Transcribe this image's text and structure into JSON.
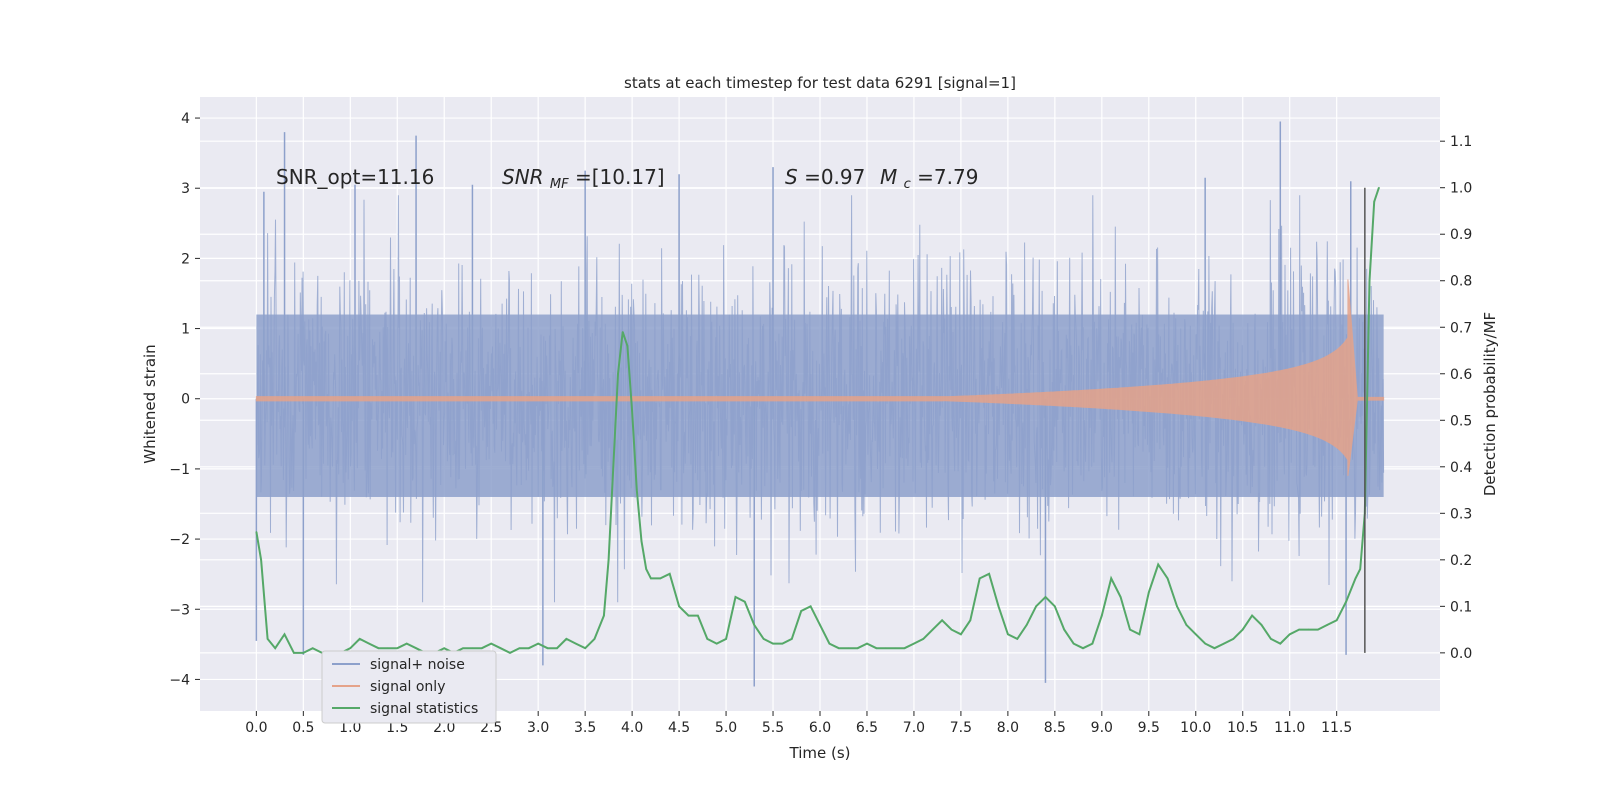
{
  "chart_data": {
    "type": "line",
    "title": "stats at each timestep for test data 6291 [signal=1]",
    "xlabel": "Time (s)",
    "ylabel": "Whitened strain",
    "ylabel_right": "Detection probability/MF",
    "xlim": [
      -0.6,
      12.6
    ],
    "ylim": [
      -4.45,
      4.3
    ],
    "ylim_right": [
      -0.125,
      1.195
    ],
    "x_ticks": [
      0.0,
      0.5,
      1.0,
      1.5,
      2.0,
      2.5,
      3.0,
      3.5,
      4.0,
      4.5,
      5.0,
      5.5,
      6.0,
      6.5,
      7.0,
      7.5,
      8.0,
      8.5,
      9.0,
      9.5,
      10.0,
      10.5,
      11.0,
      11.5
    ],
    "x_tick_labels": [
      "0.0",
      "0.5",
      "1.0",
      "1.5",
      "2.0",
      "2.5",
      "3.0",
      "3.5",
      "4.0",
      "4.5",
      "5.0",
      "5.5",
      "6.0",
      "6.5",
      "7.0",
      "7.5",
      "8.0",
      "8.5",
      "9.0",
      "9.5",
      "10.0",
      "10.5",
      "11.0",
      "11.5"
    ],
    "y_ticks": [
      -4,
      -3,
      -2,
      -1,
      0,
      1,
      2,
      3,
      4
    ],
    "y_tick_labels": [
      "−4",
      "−3",
      "−2",
      "−1",
      "0",
      "1",
      "2",
      "3",
      "4"
    ],
    "y_right_ticks": [
      0.0,
      0.1,
      0.2,
      0.3,
      0.4,
      0.5,
      0.6,
      0.7,
      0.8,
      0.9,
      1.0,
      1.1
    ],
    "y_right_tick_labels": [
      "0.0",
      "0.1",
      "0.2",
      "0.3",
      "0.4",
      "0.5",
      "0.6",
      "0.7",
      "0.8",
      "0.9",
      "1.0",
      "1.1"
    ],
    "grid": true,
    "legend_position": "bottom-left",
    "colors": {
      "background": "#eaeaf2",
      "grid": "#ffffff",
      "signal_noise": "#8da0cb",
      "signal_only": "#e5a38a",
      "statistics": "#55a868",
      "vline": "#555555",
      "text": "#262626"
    },
    "annotations": {
      "snr_opt": "SNR_opt=11.16",
      "snr_mf_main": "SNR",
      "snr_mf_sub": "MF",
      "snr_mf_value": "=[10.17]",
      "s_symbol": "S",
      "s_value": "=0.97",
      "mc_symbol": "M",
      "mc_sub": "c",
      "mc_value": "=7.79"
    },
    "vertical_line_x": 11.8,
    "vertical_line_y_range": [
      0.0,
      1.0
    ],
    "series": [
      {
        "name": "signal+ noise",
        "kind": "noise_band",
        "x_range": [
          0.0,
          12.0
        ],
        "sigma": 1.0,
        "spikes": [
          {
            "x": 0.0,
            "y": -3.45
          },
          {
            "x": 0.08,
            "y": 2.95
          },
          {
            "x": 0.3,
            "y": 3.8
          },
          {
            "x": 0.5,
            "y": -3.65
          },
          {
            "x": 1.05,
            "y": 3.05
          },
          {
            "x": 1.7,
            "y": 3.75
          },
          {
            "x": 2.3,
            "y": 3.05
          },
          {
            "x": 3.05,
            "y": -3.8
          },
          {
            "x": 3.5,
            "y": 3.25
          },
          {
            "x": 4.5,
            "y": 3.2
          },
          {
            "x": 5.3,
            "y": -4.1
          },
          {
            "x": 5.5,
            "y": 3.3
          },
          {
            "x": 8.4,
            "y": -4.05
          },
          {
            "x": 10.1,
            "y": 3.15
          },
          {
            "x": 10.9,
            "y": 3.95
          },
          {
            "x": 11.6,
            "y": -3.65
          },
          {
            "x": 11.65,
            "y": 3.1
          }
        ]
      },
      {
        "name": "signal only",
        "kind": "chirp",
        "start": 7.3,
        "merger": 11.62,
        "ringdown_end": 11.72,
        "peak_positive": 1.7,
        "peak_negative": -1.1
      },
      {
        "name": "signal statistics",
        "axis": "right",
        "x": [
          0.0,
          0.05,
          0.12,
          0.2,
          0.3,
          0.4,
          0.5,
          0.6,
          0.7,
          0.8,
          0.9,
          1.0,
          1.1,
          1.2,
          1.3,
          1.4,
          1.5,
          1.6,
          1.7,
          1.8,
          1.9,
          2.0,
          2.1,
          2.2,
          2.3,
          2.4,
          2.5,
          2.6,
          2.7,
          2.8,
          2.9,
          3.0,
          3.1,
          3.2,
          3.3,
          3.4,
          3.5,
          3.6,
          3.7,
          3.75,
          3.8,
          3.85,
          3.9,
          3.95,
          4.0,
          4.05,
          4.1,
          4.15,
          4.2,
          4.3,
          4.4,
          4.5,
          4.6,
          4.7,
          4.8,
          4.9,
          5.0,
          5.1,
          5.2,
          5.3,
          5.4,
          5.5,
          5.6,
          5.7,
          5.8,
          5.9,
          6.0,
          6.1,
          6.2,
          6.3,
          6.4,
          6.5,
          6.6,
          6.7,
          6.8,
          6.9,
          7.0,
          7.1,
          7.2,
          7.3,
          7.4,
          7.5,
          7.6,
          7.7,
          7.8,
          7.9,
          8.0,
          8.1,
          8.2,
          8.3,
          8.4,
          8.5,
          8.6,
          8.7,
          8.8,
          8.9,
          9.0,
          9.1,
          9.2,
          9.3,
          9.4,
          9.5,
          9.6,
          9.7,
          9.8,
          9.9,
          10.0,
          10.1,
          10.2,
          10.3,
          10.4,
          10.5,
          10.6,
          10.7,
          10.8,
          10.9,
          11.0,
          11.1,
          11.2,
          11.3,
          11.4,
          11.5,
          11.6,
          11.7,
          11.75,
          11.8,
          11.85,
          11.9,
          11.95
        ],
        "values": [
          0.26,
          0.2,
          0.03,
          0.01,
          0.04,
          0.0,
          0.0,
          0.01,
          0.0,
          0.0,
          0.0,
          0.01,
          0.03,
          0.02,
          0.01,
          0.01,
          0.01,
          0.02,
          0.01,
          0.0,
          0.0,
          0.01,
          0.0,
          0.01,
          0.01,
          0.01,
          0.02,
          0.01,
          0.0,
          0.01,
          0.01,
          0.02,
          0.01,
          0.01,
          0.03,
          0.02,
          0.01,
          0.03,
          0.08,
          0.2,
          0.4,
          0.6,
          0.69,
          0.66,
          0.52,
          0.35,
          0.24,
          0.18,
          0.16,
          0.16,
          0.17,
          0.1,
          0.08,
          0.08,
          0.03,
          0.02,
          0.03,
          0.12,
          0.11,
          0.06,
          0.03,
          0.02,
          0.02,
          0.03,
          0.09,
          0.1,
          0.06,
          0.02,
          0.01,
          0.01,
          0.01,
          0.02,
          0.01,
          0.01,
          0.01,
          0.01,
          0.02,
          0.03,
          0.05,
          0.07,
          0.05,
          0.04,
          0.07,
          0.16,
          0.17,
          0.1,
          0.04,
          0.03,
          0.06,
          0.1,
          0.12,
          0.1,
          0.05,
          0.02,
          0.01,
          0.02,
          0.08,
          0.16,
          0.12,
          0.05,
          0.04,
          0.13,
          0.19,
          0.16,
          0.1,
          0.06,
          0.04,
          0.02,
          0.01,
          0.02,
          0.03,
          0.05,
          0.08,
          0.06,
          0.03,
          0.02,
          0.04,
          0.05,
          0.05,
          0.05,
          0.06,
          0.07,
          0.11,
          0.16,
          0.18,
          0.3,
          0.8,
          0.97,
          1.0
        ]
      }
    ]
  }
}
